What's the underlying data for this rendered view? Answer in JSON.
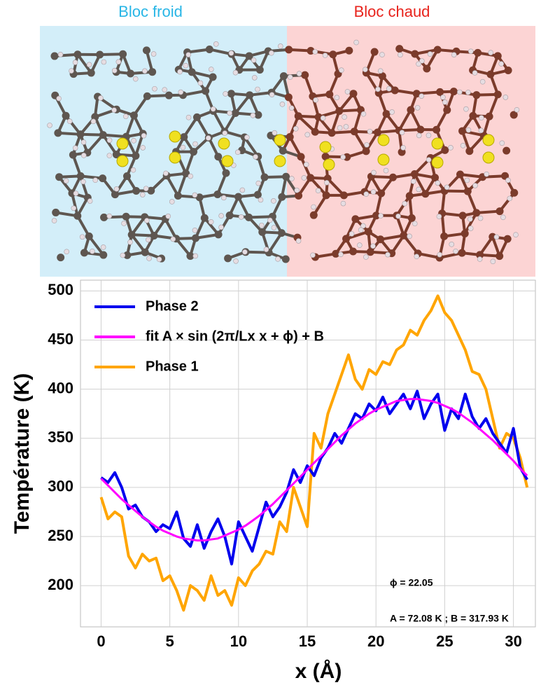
{
  "blocks": {
    "cold": "Bloc froid",
    "hot": "Bloc chaud"
  },
  "chart_data": {
    "type": "line",
    "xlabel": "x (Å)",
    "ylabel": "Température (K)",
    "xlim": [
      -1.5,
      31.6
    ],
    "ylim": [
      158,
      511
    ],
    "xticks": [
      0,
      5,
      10,
      15,
      20,
      25,
      30
    ],
    "yticks": [
      200,
      250,
      300,
      350,
      400,
      450,
      500
    ],
    "grid": true,
    "legend": "upper left",
    "annotations": [
      "ϕ = 22.05",
      "A = 72.08 K ; B = 317.93 K"
    ],
    "x": [
      0,
      0.5,
      1,
      1.5,
      2,
      2.5,
      3,
      3.5,
      4,
      4.5,
      5,
      5.5,
      6,
      6.5,
      7,
      7.5,
      8,
      8.5,
      9,
      9.5,
      10,
      10.5,
      11,
      11.5,
      12,
      12.5,
      13,
      13.5,
      14,
      14.5,
      15,
      15.5,
      16,
      16.5,
      17,
      17.5,
      18,
      18.5,
      19,
      19.5,
      20,
      20.5,
      21,
      21.5,
      22,
      22.5,
      23,
      23.5,
      24,
      24.5,
      25,
      25.5,
      26,
      26.5,
      27,
      27.5,
      28,
      28.5,
      29,
      29.5,
      30,
      30.5,
      31
    ],
    "series": [
      {
        "name": "Phase 2",
        "color": "#0000ee",
        "values": [
          310,
          305,
          315,
          300,
          278,
          282,
          270,
          265,
          255,
          262,
          258,
          275,
          248,
          240,
          262,
          238,
          255,
          268,
          250,
          222,
          265,
          250,
          235,
          260,
          285,
          270,
          280,
          295,
          318,
          305,
          322,
          312,
          330,
          340,
          355,
          345,
          360,
          375,
          370,
          385,
          378,
          392,
          375,
          385,
          395,
          380,
          398,
          370,
          385,
          395,
          358,
          380,
          370,
          395,
          372,
          360,
          370,
          355,
          345,
          335,
          360,
          320,
          308
        ]
      },
      {
        "name": "fit A × sin (2π/Lx x + ϕ) + B",
        "color": "#ff00ff",
        "values": [
          309,
          302,
          295,
          288,
          282,
          276,
          270,
          265,
          260,
          256,
          253,
          250,
          248,
          247,
          246,
          246,
          247,
          248,
          251,
          254,
          257,
          261,
          266,
          271,
          277,
          283,
          290,
          297,
          304,
          311,
          318,
          325,
          332,
          339,
          346,
          353,
          359,
          365,
          370,
          375,
          379,
          382,
          385,
          388,
          389,
          390,
          390,
          389,
          388,
          386,
          383,
          380,
          376,
          371,
          366,
          360,
          354,
          348,
          341,
          334,
          327,
          319,
          312
        ]
      },
      {
        "name": "Phase 1",
        "color": "#ffa500",
        "values": [
          290,
          268,
          275,
          270,
          230,
          218,
          232,
          225,
          228,
          205,
          210,
          195,
          175,
          200,
          195,
          185,
          210,
          190,
          195,
          180,
          208,
          200,
          215,
          222,
          235,
          232,
          265,
          255,
          300,
          280,
          260,
          355,
          340,
          375,
          395,
          415,
          435,
          410,
          400,
          420,
          415,
          428,
          425,
          440,
          445,
          460,
          455,
          470,
          480,
          495,
          478,
          470,
          455,
          440,
          418,
          415,
          400,
          370,
          340,
          355,
          350,
          330,
          300
        ]
      }
    ]
  }
}
